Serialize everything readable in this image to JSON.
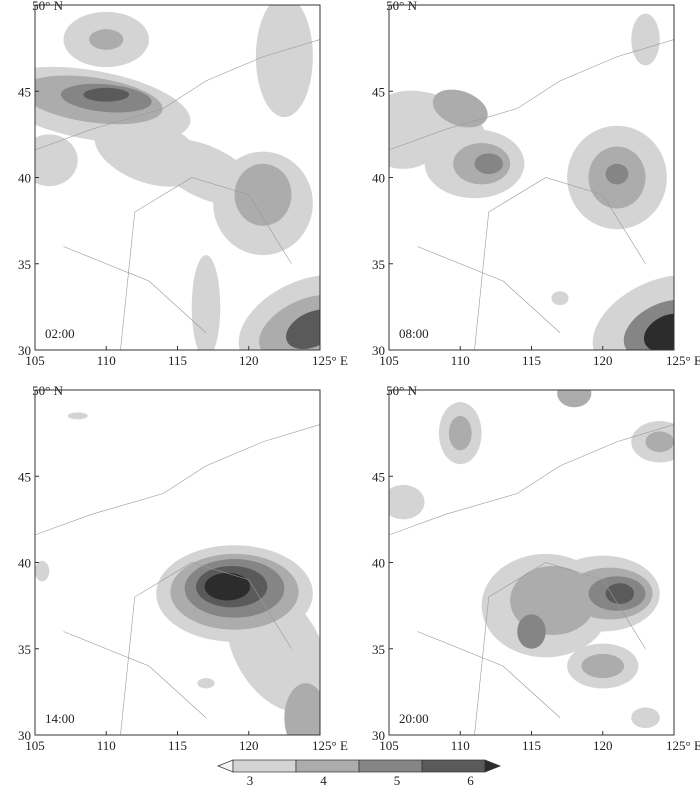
{
  "axes": {
    "xticks": [
      "105",
      "110",
      "115",
      "120",
      "125° E"
    ],
    "yticks": [
      "30",
      "35",
      "40",
      "45",
      "50° N"
    ]
  },
  "panels": [
    {
      "time": "02:00"
    },
    {
      "time": "08:00"
    },
    {
      "time": "14:00"
    },
    {
      "time": "20:00"
    }
  ],
  "colorbar": {
    "ticks": [
      "3",
      "4",
      "5",
      "6"
    ]
  }
}
